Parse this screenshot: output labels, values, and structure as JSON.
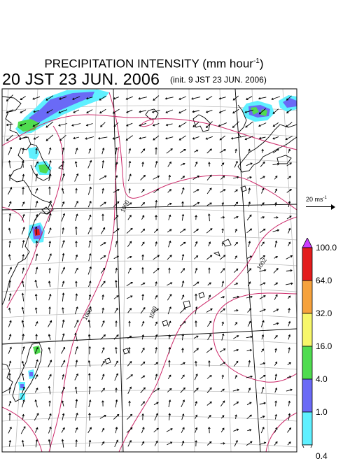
{
  "title": "PRECIPITATION INTENSITY (mm hour",
  "title_unit_exponent": "-1",
  "title_close": ")",
  "valid_time": "20 JST 23 JUN. 2006",
  "init_time": "(init. 9 JST 23 JUN. 2006)",
  "wind_scale": {
    "label": "20 ms",
    "exponent": "-1"
  },
  "colorbar": {
    "levels": [
      "0.4",
      "1.0",
      "4.0",
      "16.0",
      "32.0",
      "64.0",
      "100.0"
    ],
    "colors": [
      "#ffffff",
      "#5ff0ff",
      "#6a6af6",
      "#4fdc4f",
      "#f7f76a",
      "#f6a23c",
      "#e31c1c",
      "#cc3cff"
    ]
  },
  "isobar_labels": [
    "1000",
    "1002",
    "1000",
    "1000"
  ],
  "colors": {
    "isobar": "#cc2a6a",
    "grid": "#bdbdbd",
    "coast": "#000000"
  }
}
